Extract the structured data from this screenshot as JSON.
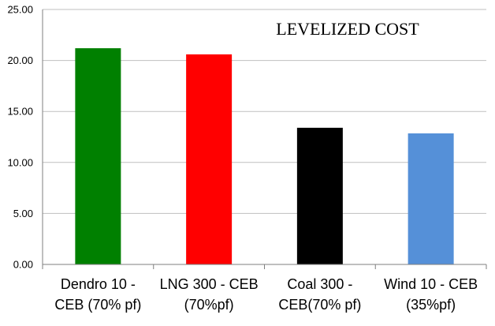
{
  "chart_data": {
    "type": "bar",
    "title": "LEVELIZED COST",
    "categories": [
      [
        "Dendro 10 -",
        "CEB (70% pf)"
      ],
      [
        "LNG 300 - CEB",
        "(70%pf)"
      ],
      [
        "Coal 300 -",
        "CEB(70% pf)"
      ],
      [
        "Wind 10 - CEB",
        "(35%pf)"
      ]
    ],
    "values": [
      21.2,
      20.6,
      13.4,
      12.85
    ],
    "colors": [
      "#008000",
      "#ff0000",
      "#000000",
      "#5590d8"
    ],
    "ylim": [
      0,
      25
    ],
    "yticks": [
      "0.00",
      "5.00",
      "10.00",
      "15.00",
      "20.00",
      "25.00"
    ],
    "ytick_values": [
      0,
      5,
      10,
      15,
      20,
      25
    ],
    "xlabel": "",
    "ylabel": "",
    "grid": true,
    "legend": "none"
  }
}
